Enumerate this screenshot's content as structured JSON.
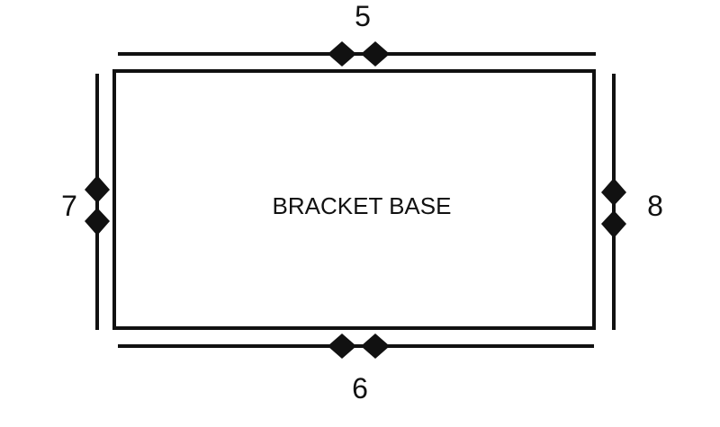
{
  "diagram": {
    "center_label": "BRACKET BASE",
    "edges": {
      "top": "5",
      "bottom": "6",
      "left": "7",
      "right": "8"
    }
  }
}
